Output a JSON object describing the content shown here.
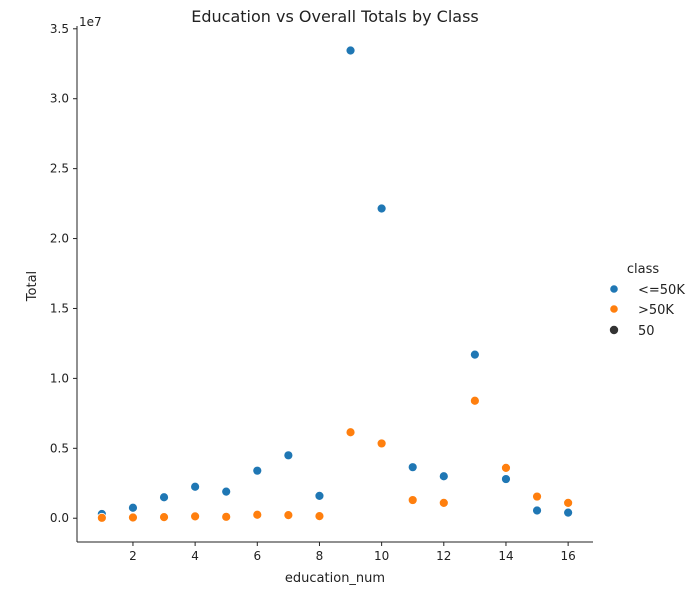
{
  "chart_data": {
    "type": "scatter",
    "title": "Education vs Overall Totals by Class",
    "xlabel": "education_num",
    "ylabel": "Total",
    "y_multiplier_label": "1e7",
    "xlim": [
      0.2,
      16.8
    ],
    "ylim": [
      -0.17,
      3.52
    ],
    "xticks": [
      2,
      4,
      6,
      8,
      10,
      12,
      14,
      16
    ],
    "xtick_labels": [
      "2",
      "4",
      "6",
      "8",
      "10",
      "12",
      "14",
      "16"
    ],
    "yticks": [
      0.0,
      0.5,
      1.0,
      1.5,
      2.0,
      2.5,
      3.0,
      3.5
    ],
    "ytick_labels": [
      "0.0",
      "0.5",
      "1.0",
      "1.5",
      "2.0",
      "2.5",
      "3.0",
      "3.5"
    ],
    "grid": false,
    "legend": {
      "title": "class",
      "placement": "right",
      "size_entry_label": "50"
    },
    "series": [
      {
        "name": "<=50K",
        "color": "#1f77b4",
        "x": [
          1,
          2,
          3,
          4,
          5,
          6,
          7,
          8,
          9,
          10,
          11,
          12,
          13,
          14,
          15,
          16
        ],
        "y": [
          0.03,
          0.075,
          0.15,
          0.225,
          0.19,
          0.34,
          0.45,
          0.16,
          3.345,
          2.215,
          0.365,
          0.3,
          1.17,
          0.28,
          0.055,
          0.04
        ]
      },
      {
        "name": ">50K",
        "color": "#ff7f0e",
        "x": [
          1,
          2,
          3,
          4,
          5,
          6,
          7,
          8,
          9,
          10,
          11,
          12,
          13,
          14,
          15,
          16
        ],
        "y": [
          0.003,
          0.005,
          0.008,
          0.013,
          0.01,
          0.025,
          0.022,
          0.015,
          0.615,
          0.535,
          0.13,
          0.11,
          0.84,
          0.36,
          0.155,
          0.11
        ]
      }
    ]
  }
}
